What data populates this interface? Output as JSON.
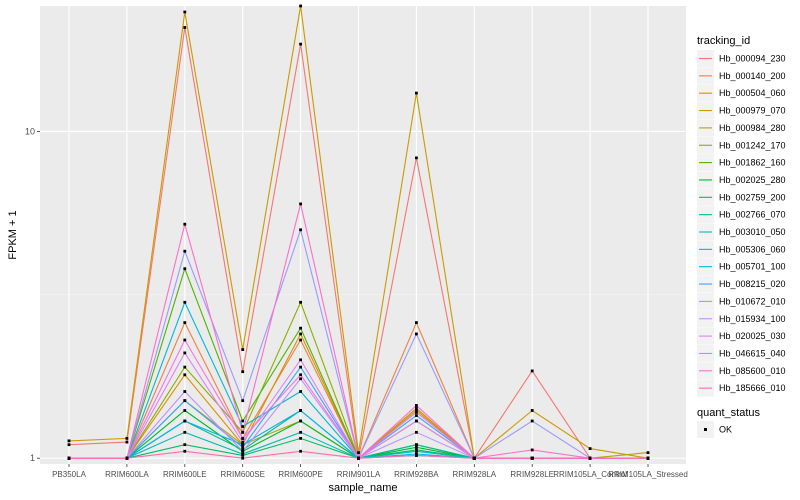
{
  "chart_data": {
    "type": "line",
    "title": "",
    "xlabel": "sample_name",
    "ylabel": "FPKM + 1",
    "y_scale": "log10",
    "ylim": [
      0.96,
      24.2
    ],
    "y_ticks": [
      1,
      10
    ],
    "y_tick_labels": [
      "1",
      "10"
    ],
    "grid": true,
    "background": "#ebebeb",
    "legend_position": "right",
    "categories": [
      "PB350LA",
      "RRIM600LA",
      "RRIM600LE",
      "RRIM600SE",
      "RRIM600PE",
      "RRIM901LA",
      "RRIM928BA",
      "RRIM928LA",
      "RRIM928LE",
      "RRIM105LA_Control",
      "RRIM105LA_Stressed"
    ],
    "series": [
      {
        "name": "Hb_000094_230",
        "color": "#F8766D",
        "values": [
          1.1,
          1.12,
          20.8,
          1.84,
          18.5,
          1.0,
          8.3,
          1.0,
          1.85,
          1.0,
          1.0
        ]
      },
      {
        "name": "Hb_000140_200",
        "color": "#EE8042",
        "values": [
          1.0,
          1.0,
          2.6,
          1.15,
          2.3,
          1.0,
          2.6,
          1.0,
          1.0,
          1.0,
          1.0
        ]
      },
      {
        "name": "Hb_000504_060",
        "color": "#DF8E00",
        "values": [
          1.0,
          1.0,
          1.8,
          1.1,
          2.4,
          1.0,
          1.42,
          1.0,
          1.0,
          1.0,
          1.0
        ]
      },
      {
        "name": "Hb_000979_070",
        "color": "#CB9A00",
        "values": [
          1.13,
          1.15,
          23.2,
          2.15,
          24.2,
          1.04,
          13.1,
          1.0,
          1.4,
          1.07,
          1.0
        ]
      },
      {
        "name": "Hb_000984_280",
        "color": "#B0A500",
        "values": [
          1.0,
          1.0,
          1.5,
          1.1,
          1.3,
          1.0,
          1.4,
          1.0,
          1.0,
          1.0,
          1.04
        ]
      },
      {
        "name": "Hb_001242_170",
        "color": "#8AAE00",
        "values": [
          1.0,
          1.0,
          1.9,
          1.2,
          3.0,
          1.0,
          1.3,
          1.0,
          1.0,
          1.0,
          1.0
        ]
      },
      {
        "name": "Hb_001862_160",
        "color": "#4EB400",
        "values": [
          1.0,
          1.0,
          3.8,
          1.3,
          2.5,
          1.0,
          1.1,
          1.0,
          1.0,
          1.0,
          1.0
        ]
      },
      {
        "name": "Hb_002025_280",
        "color": "#00B929",
        "values": [
          1.0,
          1.0,
          1.4,
          1.05,
          1.3,
          1.0,
          1.08,
          1.0,
          1.0,
          1.0,
          1.0
        ]
      },
      {
        "name": "Hb_002759_200",
        "color": "#00BC65",
        "values": [
          1.0,
          1.0,
          1.1,
          1.02,
          1.15,
          1.0,
          1.06,
          1.0,
          1.0,
          1.0,
          1.0
        ]
      },
      {
        "name": "Hb_002766_070",
        "color": "#00BD91",
        "values": [
          1.0,
          1.0,
          1.3,
          1.06,
          1.4,
          1.0,
          1.1,
          1.0,
          1.0,
          1.0,
          1.0
        ]
      },
      {
        "name": "Hb_003010_050",
        "color": "#00BCB5",
        "values": [
          1.0,
          1.0,
          1.2,
          1.03,
          1.2,
          1.0,
          1.05,
          1.0,
          1.0,
          1.0,
          1.0
        ]
      },
      {
        "name": "Hb_005306_060",
        "color": "#00B8D5",
        "values": [
          1.0,
          1.0,
          3.0,
          1.25,
          1.6,
          1.0,
          1.03,
          1.0,
          1.0,
          1.0,
          1.0
        ]
      },
      {
        "name": "Hb_005701_100",
        "color": "#00B0F0",
        "values": [
          1.0,
          1.0,
          1.3,
          1.1,
          1.4,
          1.0,
          1.02,
          1.0,
          1.0,
          1.0,
          1.0
        ]
      },
      {
        "name": "Hb_008215_020",
        "color": "#36A4FF",
        "values": [
          1.0,
          1.0,
          1.5,
          1.08,
          1.9,
          1.0,
          1.35,
          1.0,
          1.0,
          1.0,
          1.0
        ]
      },
      {
        "name": "Hb_010672_010",
        "color": "#999AFF",
        "values": [
          1.0,
          1.0,
          4.3,
          1.5,
          5.0,
          1.0,
          2.4,
          1.0,
          1.3,
          1.0,
          1.0
        ]
      },
      {
        "name": "Hb_015934_100",
        "color": "#C18FFF",
        "values": [
          1.0,
          1.0,
          1.6,
          1.05,
          1.75,
          1.0,
          1.2,
          1.0,
          1.0,
          1.0,
          1.0
        ]
      },
      {
        "name": "Hb_020025_030",
        "color": "#E081F9",
        "values": [
          1.0,
          1.0,
          2.1,
          1.12,
          2.0,
          1.0,
          1.3,
          1.0,
          1.0,
          1.0,
          1.0
        ]
      },
      {
        "name": "Hb_046615_040",
        "color": "#F474E5",
        "values": [
          1.0,
          1.0,
          2.3,
          1.15,
          1.8,
          1.0,
          1.38,
          1.0,
          1.0,
          1.0,
          1.0
        ]
      },
      {
        "name": "Hb_085600_010",
        "color": "#FD6ECC",
        "values": [
          1.0,
          1.0,
          5.2,
          1.2,
          6.0,
          1.0,
          1.45,
          1.0,
          1.06,
          1.0,
          1.0
        ]
      },
      {
        "name": "Hb_185666_010",
        "color": "#FF6BAD",
        "values": [
          1.0,
          1.0,
          1.05,
          1.0,
          1.05,
          1.0,
          1.02,
          1.0,
          1.0,
          1.0,
          1.0
        ]
      }
    ],
    "legend": {
      "title": "tracking_id",
      "shape_title": "quant_status",
      "shape_label": "OK"
    }
  }
}
